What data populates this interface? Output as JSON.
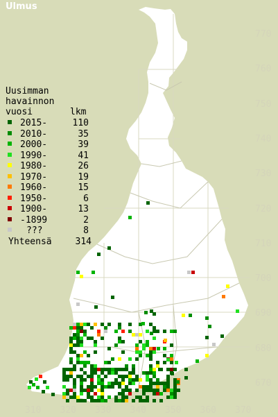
{
  "title": "Ulmus",
  "legend": {
    "heading": [
      "Uusimman",
      "havainnon",
      "vuosi"
    ],
    "count_header": "lkm",
    "rows": [
      {
        "period": "2015-",
        "count": "110",
        "color": "#006400"
      },
      {
        "period": "2010-",
        "count": "35",
        "color": "#008c00"
      },
      {
        "period": "2000-",
        "count": "39",
        "color": "#00b400"
      },
      {
        "period": "1990-",
        "count": "41",
        "color": "#20e020"
      },
      {
        "period": "1980-",
        "count": "26",
        "color": "#ffff00"
      },
      {
        "period": "1970-",
        "count": "19",
        "color": "#ffc000"
      },
      {
        "period": "1960-",
        "count": "15",
        "color": "#ff7a00"
      },
      {
        "period": "1950-",
        "count": "6",
        "color": "#ff2000"
      },
      {
        "period": "1900-",
        "count": "13",
        "color": "#c80000"
      },
      {
        "period": "-1899",
        "count": "2",
        "color": "#800000"
      },
      {
        "period": "???",
        "count": "8",
        "color": "#c8c8c8"
      }
    ],
    "total_label": "Yhteensä",
    "total_count": "314"
  },
  "y_ticks": [
    "770",
    "760",
    "750",
    "740",
    "730",
    "720",
    "710",
    "700",
    "690",
    "680",
    "670"
  ],
  "x_ticks": [
    "310",
    "320",
    "330",
    "340",
    "350",
    "360",
    "370"
  ]
}
